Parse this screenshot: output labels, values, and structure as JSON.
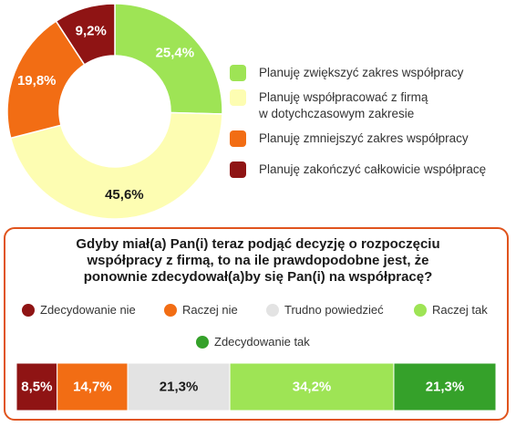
{
  "colors": {
    "light_green": "#9ee455",
    "light_yellow": "#fdfdb2",
    "orange": "#f26d14",
    "dark_red": "#8f1414",
    "light_gray": "#e3e3e3",
    "dark_green": "#35a12a",
    "panel_border": "#e0541d"
  },
  "chart_data": [
    {
      "type": "pie",
      "variant": "donut",
      "labels": [
        "Planuję zwiększyć zakres współpracy",
        "Planuję współpracować z firmą w dotychczasowym zakresie",
        "Planuję zmniejszyć zakres współpracy",
        "Planuję zakończyć całkowicie współpracę"
      ],
      "legend_lines": [
        [
          "Planuję zwiększyć zakres współpracy"
        ],
        [
          "Planuję współpracować z firmą",
          "w dotychczasowym zakresie"
        ],
        [
          "Planuję zmniejszyć zakres współpracy"
        ],
        [
          "Planuję zakończyć całkowicie współpracę"
        ]
      ],
      "values": [
        25.4,
        45.6,
        19.8,
        9.2
      ],
      "value_labels": [
        "25,4%",
        "45,6%",
        "19,8%",
        "9,2%"
      ],
      "colors": [
        "#9ee455",
        "#fdfdb2",
        "#f26d14",
        "#8f1414"
      ],
      "legend_position": "right"
    },
    {
      "type": "bar",
      "variant": "stacked-horizontal-100",
      "title": "Gdyby miał(a) Pan(i) teraz podjąć decyzję o rozpoczęciu współpracy z firmą, to na ile prawdopodobne jest, że ponownie zdecydował(a)by się Pan(i) na współpracę?",
      "title_lines": [
        "Gdyby miał(a) Pan(i) teraz podjąć decyzję o rozpoczęciu",
        "współpracy z firmą, to na ile prawdopodobne jest, że",
        "ponownie zdecydował(a)by się Pan(i) na współpracę?"
      ],
      "series": [
        {
          "name": "Zdecydowanie nie",
          "value": 8.5,
          "label": "8,5%",
          "color": "#8f1414",
          "text_color": "#ffffff"
        },
        {
          "name": "Raczej nie",
          "value": 14.7,
          "label": "14,7%",
          "color": "#f26d14",
          "text_color": "#ffffff"
        },
        {
          "name": "Trudno powiedzieć",
          "value": 21.3,
          "label": "21,3%",
          "color": "#e3e3e3",
          "text_color": "#1a1a1a"
        },
        {
          "name": "Raczej tak",
          "value": 34.2,
          "label": "34,2%",
          "color": "#9ee455",
          "text_color": "#ffffff"
        },
        {
          "name": "Zdecydowanie tak",
          "value": 21.3,
          "label": "21,3%",
          "color": "#35a12a",
          "text_color": "#ffffff"
        }
      ],
      "legend_position": "top"
    }
  ]
}
